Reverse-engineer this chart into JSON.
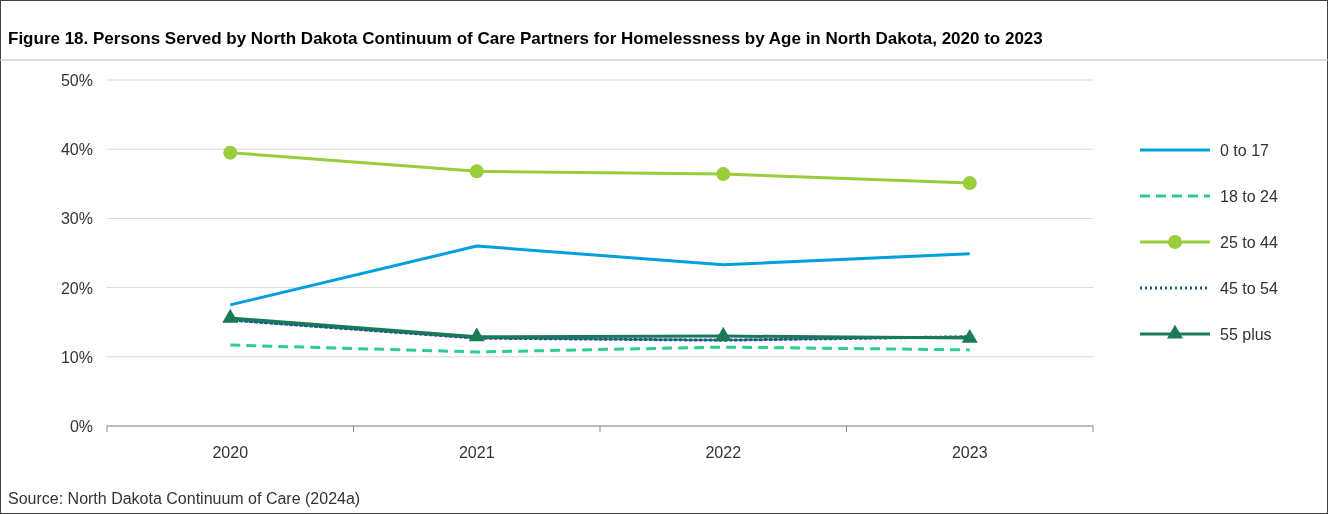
{
  "chart_data": {
    "type": "line",
    "title": "Figure 18. Persons Served by North Dakota Continuum of Care Partners for Homelessness by Age in North Dakota, 2020 to 2023",
    "categories": [
      "2020",
      "2021",
      "2022",
      "2023"
    ],
    "ylim": [
      0,
      50
    ],
    "yticks": [
      {
        "value": 0,
        "label": "0%"
      },
      {
        "value": 10,
        "label": "10%"
      },
      {
        "value": 20,
        "label": "20%"
      },
      {
        "value": 30,
        "label": "30%"
      },
      {
        "value": 40,
        "label": "40%"
      },
      {
        "value": 50,
        "label": "50%"
      }
    ],
    "grid": "y",
    "legend": "right",
    "series": [
      {
        "name": "0 to 17",
        "color": "#00a0dc",
        "values": [
          17.5,
          26.0,
          23.3,
          24.9
        ],
        "line_style": "solid",
        "marker": "none"
      },
      {
        "name": "18 to 24",
        "color": "#2ecc95",
        "values": [
          11.7,
          10.7,
          11.4,
          11.0
        ],
        "line_style": "dashed",
        "marker": "none"
      },
      {
        "name": "25 to 44",
        "color": "#9acd3c",
        "values": [
          39.5,
          36.8,
          36.4,
          35.1
        ],
        "line_style": "solid",
        "marker": "circle"
      },
      {
        "name": "45 to 54",
        "color": "#1a5c8a",
        "values": [
          15.3,
          12.7,
          12.4,
          12.9
        ],
        "line_style": "dotted",
        "marker": "none"
      },
      {
        "name": "55 plus",
        "color": "#1a7a56",
        "values": [
          15.6,
          12.9,
          13.0,
          12.7
        ],
        "line_style": "solid",
        "marker": "triangle"
      }
    ],
    "annotations": [
      "Source: North Dakota Continuum of Care (2024a)"
    ]
  }
}
